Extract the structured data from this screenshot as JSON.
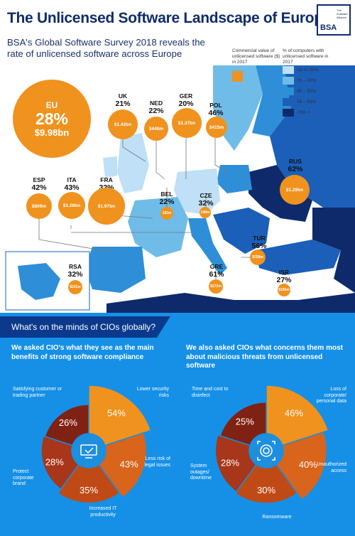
{
  "header": {
    "title": "The Unlicensed Software Landscape of Europe",
    "subtitle": "BSA's Global Software Survey 2018 reveals the rate of unlicensed software across Europe",
    "logo": {
      "text": "BSA",
      "tagline": "The Software Alliance"
    }
  },
  "legend": {
    "value_label": "Commercial value of unlicensed software ($) in 2017",
    "pct_label": "% of computers with unlicensed software in 2017",
    "items": [
      {
        "label": "Up to 25%",
        "color": "#bfe0f6"
      },
      {
        "label": "26 – 39%",
        "color": "#6fbce9"
      },
      {
        "label": "40 – 55%",
        "color": "#2e8fd8"
      },
      {
        "label": "56 – 69%",
        "color": "#1b5fb8"
      },
      {
        "label": "70% +",
        "color": "#0f2a6b"
      }
    ]
  },
  "eu": {
    "code": "EU",
    "pct": "28%",
    "value": "$9.98bn"
  },
  "countries": [
    {
      "code": "UK",
      "pct": "21%",
      "value": "$1.42bn"
    },
    {
      "code": "NED",
      "pct": "22%",
      "value": "$448m"
    },
    {
      "code": "GER",
      "pct": "20%",
      "value": "$1.37bn"
    },
    {
      "code": "POL",
      "pct": "46%",
      "value": "$415m"
    },
    {
      "code": "RUS",
      "pct": "62%",
      "value": "$1.29bn"
    },
    {
      "code": "ESP",
      "pct": "42%",
      "value": "$809m"
    },
    {
      "code": "ITA",
      "pct": "43%",
      "value": "$1.28bn"
    },
    {
      "code": "FRA",
      "pct": "32%",
      "value": "$1.97bn"
    },
    {
      "code": "BEL",
      "pct": "22%",
      "value": "182m"
    },
    {
      "code": "CZE",
      "pct": "32%",
      "value": "148m"
    },
    {
      "code": "TUR",
      "pct": "56%",
      "value": "$258m"
    },
    {
      "code": "GRE",
      "pct": "61%",
      "value": "$173m"
    },
    {
      "code": "ISR",
      "pct": "27%",
      "value": "$166m"
    },
    {
      "code": "RSA",
      "pct": "32%",
      "value": "$241m"
    }
  ],
  "section": {
    "banner": "What's on the minds of CIOs globally?"
  },
  "compliance": {
    "question": "We asked CIO's what they see as the main benefits of strong software compliance",
    "slices": [
      {
        "pct": "54%",
        "label": "Lower security risks",
        "color": "#f0921e"
      },
      {
        "pct": "43%",
        "label": "Less risk of legal issues",
        "color": "#d9641c"
      },
      {
        "pct": "35%",
        "label": "Increased IT productivity",
        "color": "#c04a16"
      },
      {
        "pct": "28%",
        "label": "Protect corporate brand",
        "color": "#a8361a"
      },
      {
        "pct": "26%",
        "label": "Satisfying customer or trading partner",
        "color": "#7f2213"
      }
    ]
  },
  "threats": {
    "question": "We also asked CIOs what concerns them most about malicious threats from unlicensed software",
    "slices": [
      {
        "pct": "46%",
        "label": "Loss of corporate/ personal data",
        "color": "#f0921e"
      },
      {
        "pct": "40%",
        "label": "Unauthorized access",
        "color": "#d9641c"
      },
      {
        "pct": "30%",
        "label": "Ransomware",
        "color": "#c04a16"
      },
      {
        "pct": "28%",
        "label": "System outages/ downtime",
        "color": "#a8361a"
      },
      {
        "pct": "25%",
        "label": "Time and cost to disinfect",
        "color": "#7f2213"
      }
    ]
  }
}
